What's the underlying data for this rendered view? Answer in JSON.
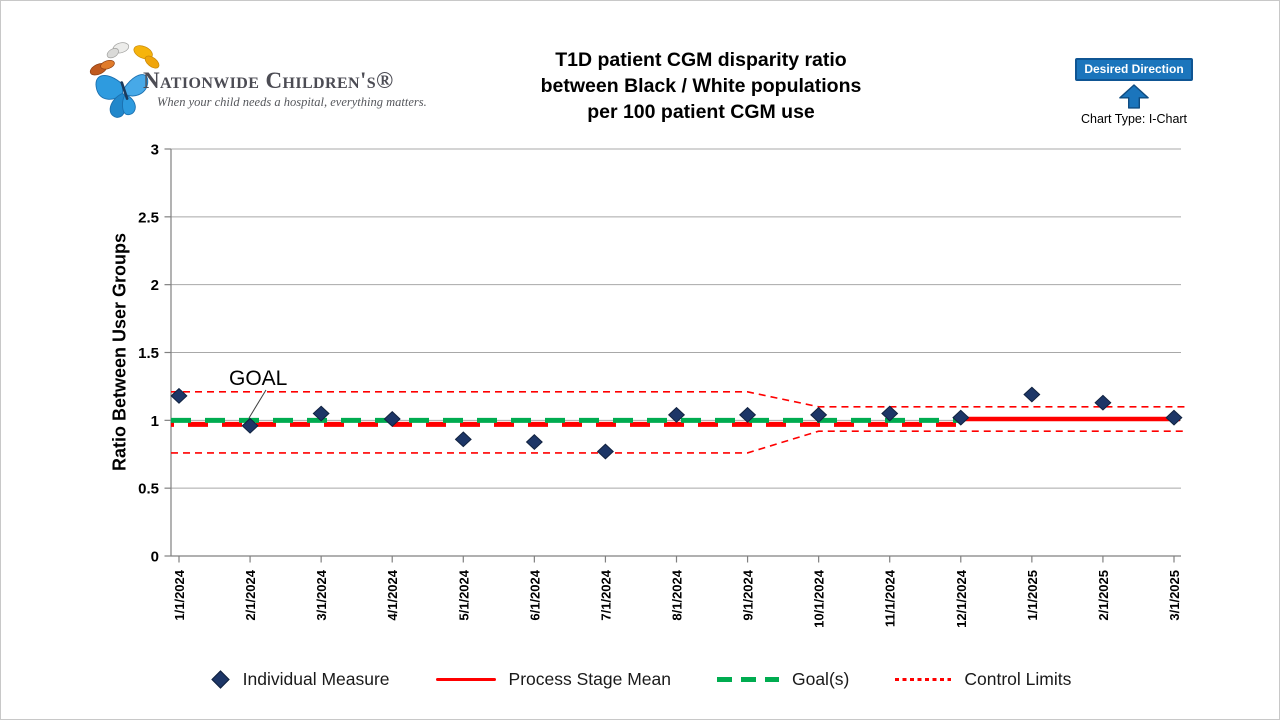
{
  "logo": {
    "name": "Nationwide Children's®",
    "tagline": "When your child needs a hospital, everything matters."
  },
  "header": {
    "title_lines": [
      "T1D patient CGM disparity ratio",
      "between Black / White populations",
      "per 100 patient CGM use"
    ],
    "desired_direction_label": "Desired Direction",
    "chart_type_label": "Chart Type: I-Chart"
  },
  "chart_data": {
    "type": "scatter",
    "subtype": "i-chart (individuals control chart)",
    "title": "T1D patient CGM disparity ratio between Black / White populations per 100 patient CGM use",
    "xlabel": "",
    "ylabel": "Ratio Between User Groups",
    "ylim": [
      0,
      3
    ],
    "yticks": [
      0,
      0.5,
      1,
      1.5,
      2,
      2.5,
      3
    ],
    "grid": "horizontal",
    "legend_position": "bottom",
    "categories": [
      "1/1/2024",
      "2/1/2024",
      "3/1/2024",
      "4/1/2024",
      "5/1/2024",
      "6/1/2024",
      "7/1/2024",
      "8/1/2024",
      "9/1/2024",
      "10/1/2024",
      "11/1/2024",
      "12/1/2024",
      "1/1/2025",
      "2/1/2025",
      "3/1/2025"
    ],
    "series": [
      {
        "name": "Individual Measure",
        "marker": "diamond",
        "values": [
          1.18,
          0.96,
          1.05,
          1.01,
          0.86,
          0.84,
          0.77,
          1.04,
          1.04,
          1.04,
          1.05,
          1.02,
          1.19,
          1.13,
          1.02
        ]
      }
    ],
    "process_stage_means": [
      {
        "from": 0,
        "to": 11,
        "value": 0.97,
        "style": "dashed"
      },
      {
        "from": 11,
        "to": 14,
        "value": 1.01,
        "style": "solid"
      }
    ],
    "goal": {
      "label": "GOAL",
      "value": 1.0,
      "from": 0,
      "to": 11
    },
    "control_limits": {
      "upper": [
        {
          "x": 0,
          "v": 1.21
        },
        {
          "x": 8,
          "v": 1.21
        },
        {
          "x": 9,
          "v": 1.1
        },
        {
          "x": 14,
          "v": 1.1
        }
      ],
      "lower": [
        {
          "x": 0,
          "v": 0.76
        },
        {
          "x": 8,
          "v": 0.76
        },
        {
          "x": 9,
          "v": 0.92
        },
        {
          "x": 14,
          "v": 0.92
        }
      ]
    },
    "legend": [
      {
        "label": "Individual Measure"
      },
      {
        "label": "Process Stage Mean"
      },
      {
        "label": "Goal(s)"
      },
      {
        "label": "Control Limits"
      }
    ],
    "colors": {
      "individual_measure": "#1d3667",
      "mean": "#ff0000",
      "goal": "#00ac50",
      "control_limits": "#ff0000",
      "gridline": "#a8a8a8",
      "axis": "#808080"
    }
  },
  "colors": {
    "badge_blue": "#1b75bc",
    "badge_border": "#0f5593"
  }
}
